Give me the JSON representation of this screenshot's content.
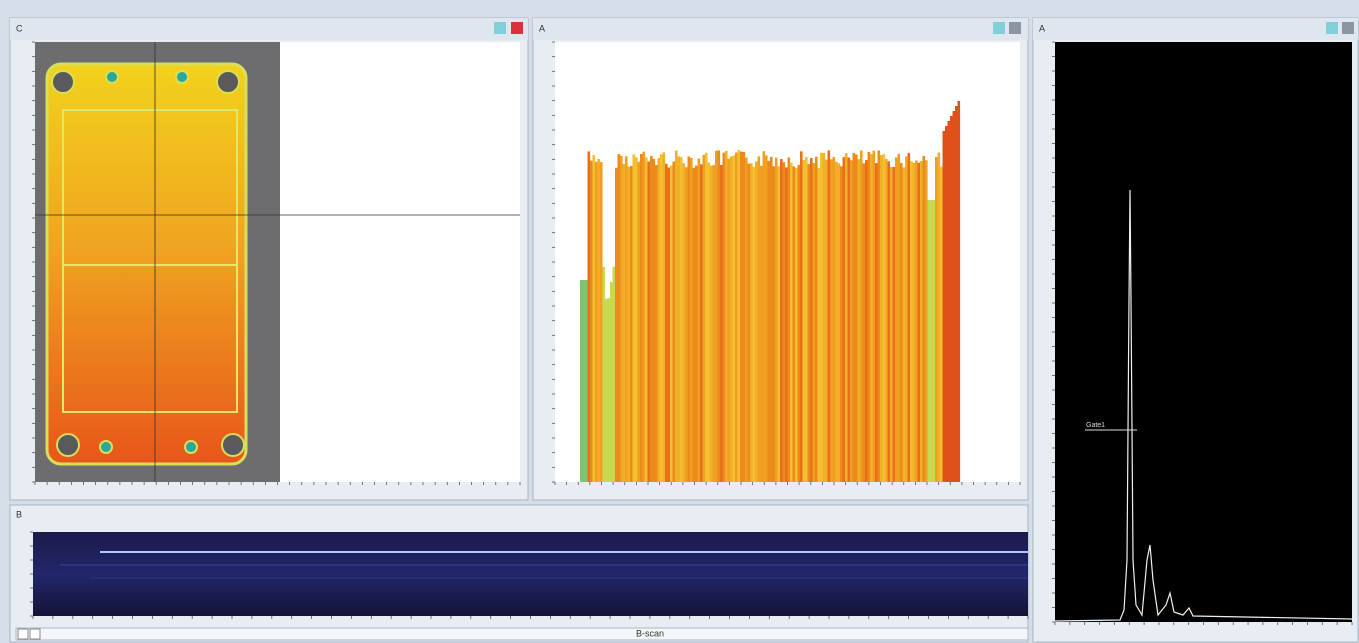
{
  "panels": {
    "cscan": {
      "title": "C"
    },
    "ascan_profile": {
      "title": "A"
    },
    "ascan": {
      "title": "A",
      "gate_label": "Gate1"
    },
    "bscan": {
      "title": "B",
      "caption": "B-scan"
    }
  }
}
